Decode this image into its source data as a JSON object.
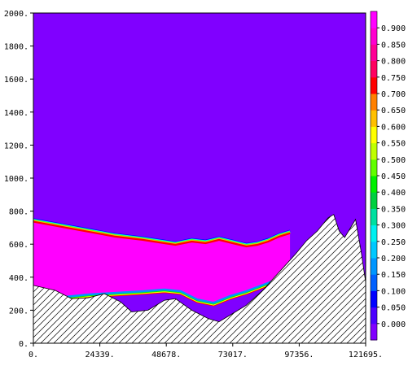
{
  "chart_data": {
    "type": "heatmap",
    "title": "",
    "xlabel": "",
    "ylabel": "",
    "xlim": [
      0,
      121695
    ],
    "ylim": [
      0,
      2000
    ],
    "x_ticks": [
      {
        "value": 0,
        "label": "0."
      },
      {
        "value": 24339,
        "label": "24339."
      },
      {
        "value": 48678,
        "label": "48678."
      },
      {
        "value": 73017,
        "label": "73017."
      },
      {
        "value": 97356,
        "label": "97356."
      },
      {
        "value": 121695,
        "label": "121695."
      }
    ],
    "y_ticks": [
      {
        "value": 0,
        "label": "0."
      },
      {
        "value": 200,
        "label": "200."
      },
      {
        "value": 400,
        "label": "400."
      },
      {
        "value": 600,
        "label": "600."
      },
      {
        "value": 800,
        "label": "800."
      },
      {
        "value": 1000,
        "label": "1000."
      },
      {
        "value": 1200,
        "label": "1200."
      },
      {
        "value": 1400,
        "label": "1400."
      },
      {
        "value": 1600,
        "label": "1600."
      },
      {
        "value": 1800,
        "label": "1800."
      },
      {
        "value": 2000,
        "label": "2000."
      }
    ],
    "colorbar": {
      "levels": [
        "0.000",
        "0.050",
        "0.100",
        "0.150",
        "0.200",
        "0.250",
        "0.300",
        "0.350",
        "0.400",
        "0.450",
        "0.500",
        "0.550",
        "0.600",
        "0.650",
        "0.700",
        "0.750",
        "0.800",
        "0.850",
        "0.900"
      ],
      "colors": [
        "#8000ff",
        "#4b00ff",
        "#0000ff",
        "#0060ff",
        "#0096ff",
        "#00c8ff",
        "#00f0f0",
        "#00e0a0",
        "#00d040",
        "#00f000",
        "#60ff00",
        "#c0ff00",
        "#ffff00",
        "#ffc000",
        "#ff8000",
        "#ff0000",
        "#ff0060",
        "#ff0096",
        "#ff00d0",
        "#ff00ff"
      ]
    },
    "upper_interface": [
      [
        0,
        740
      ],
      [
        10000,
        710
      ],
      [
        20000,
        680
      ],
      [
        30000,
        650
      ],
      [
        40000,
        630
      ],
      [
        48000,
        610
      ],
      [
        52000,
        600
      ],
      [
        58000,
        620
      ],
      [
        63000,
        610
      ],
      [
        68000,
        630
      ],
      [
        73000,
        610
      ],
      [
        78000,
        590
      ],
      [
        82000,
        600
      ],
      [
        86000,
        620
      ],
      [
        90000,
        650
      ],
      [
        94000,
        670
      ]
    ],
    "lower_interface": [
      [
        8000,
        270
      ],
      [
        20000,
        290
      ],
      [
        30000,
        300
      ],
      [
        40000,
        310
      ],
      [
        48000,
        320
      ],
      [
        54000,
        310
      ],
      [
        60000,
        260
      ],
      [
        66000,
        240
      ],
      [
        72000,
        280
      ],
      [
        78000,
        310
      ],
      [
        86000,
        360
      ],
      [
        94000,
        420
      ]
    ],
    "bottom_topography": [
      [
        0,
        350
      ],
      [
        8000,
        320
      ],
      [
        14000,
        270
      ],
      [
        20000,
        275
      ],
      [
        26000,
        300
      ],
      [
        32000,
        250
      ],
      [
        36000,
        190
      ],
      [
        42000,
        200
      ],
      [
        48000,
        260
      ],
      [
        52000,
        270
      ],
      [
        58000,
        200
      ],
      [
        64000,
        150
      ],
      [
        68000,
        130
      ],
      [
        72000,
        170
      ],
      [
        78000,
        230
      ],
      [
        84000,
        320
      ],
      [
        90000,
        430
      ],
      [
        96000,
        540
      ],
      [
        100000,
        620
      ],
      [
        104000,
        680
      ],
      [
        106000,
        720
      ],
      [
        108000,
        760
      ],
      [
        110000,
        780
      ],
      [
        112000,
        680
      ],
      [
        114000,
        640
      ],
      [
        118000,
        750
      ],
      [
        120000,
        560
      ],
      [
        121695,
        370
      ]
    ]
  }
}
